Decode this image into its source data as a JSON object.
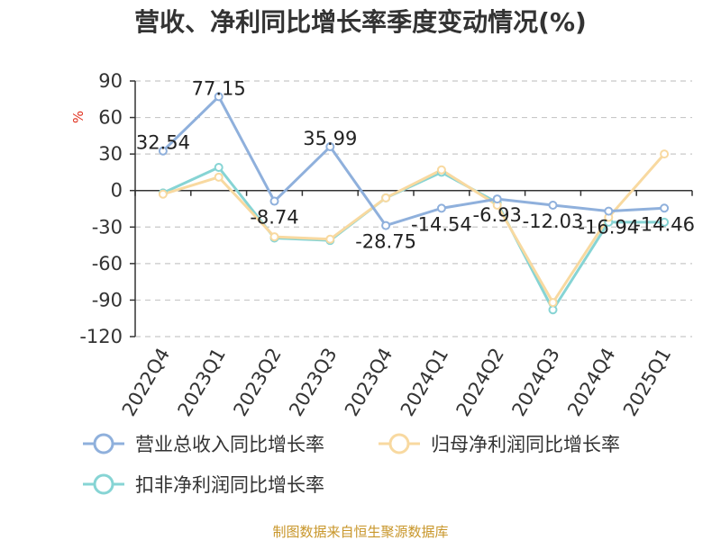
{
  "chart_data": {
    "type": "line",
    "title": "营收、净利同比增长率季度变动情况(%)",
    "ylabel": "%",
    "xlabel": "",
    "categories": [
      "2022Q4",
      "2023Q1",
      "2023Q2",
      "2023Q3",
      "2023Q4",
      "2024Q1",
      "2024Q2",
      "2024Q3",
      "2024Q4",
      "2025Q1"
    ],
    "yticks": [
      90,
      60,
      30,
      0,
      -30,
      -60,
      -90,
      -120
    ],
    "ylim": [
      -120,
      90
    ],
    "grid": true,
    "legend_position": "bottom",
    "series": [
      {
        "name": "营业总收入同比增长率",
        "color": "#8fb0dc",
        "values": [
          32.54,
          77.15,
          -8.74,
          35.99,
          -28.75,
          -14.54,
          -6.93,
          -12.03,
          -16.94,
          -14.46
        ],
        "labels": [
          "32.54",
          "77.15",
          "-8.74",
          "35.99",
          "-28.75",
          "-14.54",
          "-6.93",
          "-12.03",
          "-16.94",
          "-14.46"
        ]
      },
      {
        "name": "归母净利润同比增长率",
        "color": "#f8d9a0",
        "values": [
          -3,
          11,
          -38,
          -40,
          -6,
          17,
          -12,
          -92,
          -22,
          30
        ]
      },
      {
        "name": "扣非净利润同比增长率",
        "color": "#86d4d4",
        "values": [
          -2,
          19,
          -39,
          -41,
          -6,
          15,
          -10,
          -98,
          -26,
          -26
        ]
      }
    ]
  },
  "footer": {
    "source": "制图数据来自恒生聚源数据库"
  }
}
